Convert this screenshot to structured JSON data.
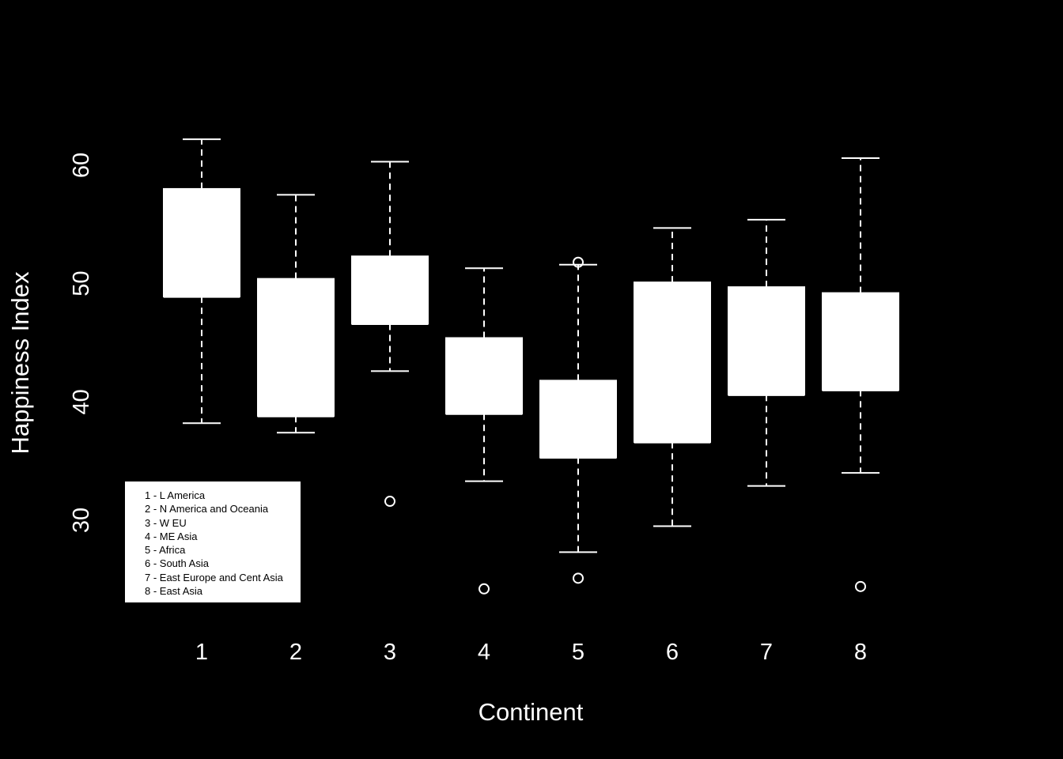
{
  "chart_data": {
    "type": "boxplot",
    "title": "",
    "xlabel": "Continent",
    "ylabel": "Happiness Index",
    "ylim": [
      21,
      66
    ],
    "yticks": [
      30,
      40,
      50,
      60
    ],
    "categories": [
      "1",
      "2",
      "3",
      "4",
      "5",
      "6",
      "7",
      "8"
    ],
    "boxes": [
      {
        "category": "1",
        "whisker_low": 38.2,
        "q1": 48.9,
        "median": 48.9,
        "q3": 58.0,
        "whisker_high": 62.2,
        "outliers": []
      },
      {
        "category": "2",
        "whisker_low": 37.4,
        "q1": 38.8,
        "median": 38.8,
        "q3": 50.4,
        "whisker_high": 57.5,
        "outliers": []
      },
      {
        "category": "3",
        "whisker_low": 42.6,
        "q1": 46.6,
        "median": 46.6,
        "q3": 52.3,
        "whisker_high": 60.3,
        "outliers": [
          31.6
        ]
      },
      {
        "category": "4",
        "whisker_low": 33.3,
        "q1": 39.0,
        "median": 39.0,
        "q3": 45.4,
        "whisker_high": 51.3,
        "outliers": [
          24.2
        ]
      },
      {
        "category": "5",
        "whisker_low": 27.3,
        "q1": 35.3,
        "median": 35.3,
        "q3": 41.8,
        "whisker_high": 51.6,
        "outliers": [
          51.8,
          25.1
        ]
      },
      {
        "category": "6",
        "whisker_low": 29.5,
        "q1": 36.6,
        "median": 36.6,
        "q3": 50.1,
        "whisker_high": 54.7,
        "outliers": []
      },
      {
        "category": "7",
        "whisker_low": 32.9,
        "q1": 40.6,
        "median": 40.6,
        "q3": 49.7,
        "whisker_high": 55.4,
        "outliers": []
      },
      {
        "category": "8",
        "whisker_low": 34.0,
        "q1": 41.0,
        "median": 41.0,
        "q3": 49.2,
        "whisker_high": 60.6,
        "outliers": [
          24.4
        ]
      }
    ],
    "legend": {
      "placement": "bottom-left",
      "items": [
        "1 - L America",
        "2 - N America and Oceania",
        "3 - W EU",
        "4 - ME Asia",
        "5 - Africa",
        "6 - South Asia",
        "7 - East Europe and Cent Asia",
        "8 - East Asia"
      ]
    },
    "grid": false,
    "colors": {
      "background": "#000000",
      "foreground": "#ffffff",
      "legend_text": "#000000"
    }
  }
}
